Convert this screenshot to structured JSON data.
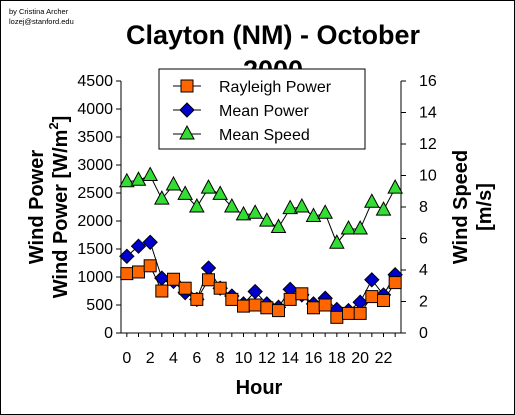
{
  "credit": {
    "line1": "by Cristina Archer",
    "line2": "lozej@stanford.edu"
  },
  "chart_data": {
    "type": "line",
    "title_line1": "Clayton (NM) - October",
    "title_line2": "2000",
    "xlabel": "Hour",
    "ylabel_left": "Wind Power [W/m",
    "ylabel_left_sup": "2",
    "ylabel_left_end": "]",
    "ylabel_right": "Wind Speed [m/s]",
    "x": [
      0,
      1,
      2,
      3,
      4,
      5,
      6,
      7,
      8,
      9,
      10,
      11,
      12,
      13,
      14,
      15,
      16,
      17,
      18,
      19,
      20,
      21,
      22,
      23
    ],
    "x_ticks": [
      "0",
      "2",
      "4",
      "6",
      "8",
      "10",
      "12",
      "14",
      "16",
      "18",
      "20",
      "22"
    ],
    "xlim": [
      -0.5,
      23.5
    ],
    "y_left_ticks": [
      "0",
      "500",
      "1000",
      "1500",
      "2000",
      "2500",
      "3000",
      "3500",
      "4000",
      "4500"
    ],
    "ylim_left": [
      0,
      4500
    ],
    "y_right_ticks": [
      "0",
      "2",
      "4",
      "6",
      "8",
      "10",
      "12",
      "14",
      "16"
    ],
    "ylim_right": [
      0,
      16
    ],
    "grid": false,
    "legend_position": "top-center",
    "series": [
      {
        "name": "Rayleigh Power",
        "axis": "left",
        "marker": "square",
        "color": "#FF6600",
        "values": [
          1060,
          1090,
          1200,
          750,
          960,
          800,
          600,
          950,
          800,
          600,
          480,
          500,
          450,
          400,
          600,
          700,
          450,
          500,
          280,
          350,
          350,
          650,
          580,
          900
        ]
      },
      {
        "name": "Mean Power",
        "axis": "left",
        "marker": "diamond",
        "color": "#0000CC",
        "values": [
          1370,
          1550,
          1620,
          980,
          920,
          720,
          600,
          1160,
          800,
          660,
          520,
          740,
          520,
          460,
          780,
          680,
          520,
          620,
          420,
          400,
          550,
          950,
          680,
          1040
        ]
      },
      {
        "name": "Mean Speed",
        "axis": "right",
        "marker": "triangle",
        "color": "#33DD33",
        "values": [
          9.6,
          9.7,
          10.0,
          8.5,
          9.4,
          8.8,
          8.0,
          9.2,
          8.8,
          8.0,
          7.5,
          7.6,
          7.1,
          6.7,
          7.9,
          8.0,
          7.4,
          7.6,
          5.7,
          6.6,
          6.6,
          8.3,
          7.8,
          9.2
        ]
      }
    ]
  }
}
